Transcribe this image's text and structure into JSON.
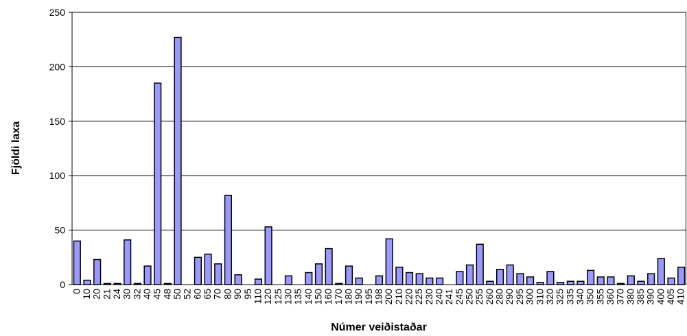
{
  "chart_data": {
    "type": "bar",
    "y_label": "Fjöldi laxa",
    "x_label": "Númer veiðistaðar",
    "categories": [
      "0",
      "10",
      "20",
      "21",
      "24",
      "30",
      "32",
      "40",
      "45",
      "48",
      "50",
      "52",
      "60",
      "65",
      "70",
      "80",
      "90",
      "95",
      "110",
      "120",
      "125",
      "130",
      "135",
      "140",
      "150",
      "160",
      "170",
      "180",
      "190",
      "195",
      "198",
      "200",
      "210",
      "220",
      "225",
      "230",
      "240",
      "241",
      "245",
      "250",
      "255",
      "260",
      "280",
      "290",
      "295",
      "300",
      "310",
      "320",
      "325",
      "335",
      "340",
      "350",
      "355",
      "360",
      "370",
      "380",
      "385",
      "390",
      "400",
      "405",
      "410"
    ],
    "values": [
      40,
      4,
      23,
      1,
      1,
      41,
      1,
      17,
      185,
      1,
      227,
      0,
      25,
      28,
      19,
      82,
      9,
      0,
      5,
      53,
      0,
      8,
      0,
      11,
      19,
      33,
      1,
      17,
      6,
      0,
      8,
      42,
      16,
      11,
      10,
      6,
      6,
      0,
      12,
      18,
      37,
      3,
      14,
      18,
      10,
      7,
      2,
      12,
      2,
      3,
      3,
      13,
      7,
      7,
      1,
      8,
      3,
      10,
      24,
      6,
      16
    ],
    "color": "#9999ff",
    "ylim": [
      0,
      250
    ],
    "yticks": [
      0,
      50,
      100,
      150,
      200,
      250
    ],
    "grid": true
  }
}
